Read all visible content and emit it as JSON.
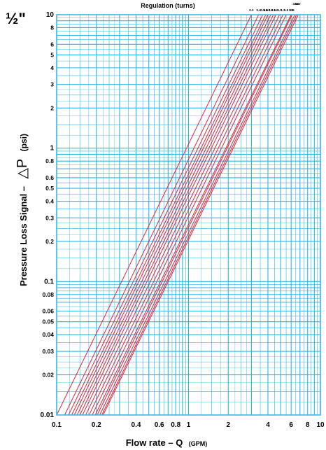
{
  "chart_data": {
    "type": "line",
    "corner_label": "½\"",
    "title": "Regulation (turns)",
    "xlabel": "Flow rate  –  Q",
    "xlabel_unit": "(GPM)",
    "ylabel": "Pressure Loss Signal  –",
    "ylabel_symbol": "△P",
    "ylabel_unit": "(psi)",
    "x_scale": "log",
    "y_scale": "log",
    "xlim": [
      0.1,
      10
    ],
    "ylim": [
      0.01,
      10
    ],
    "grid": true,
    "x_ticks": [
      {
        "value": 0.1,
        "label": "0.1"
      },
      {
        "value": 0.2,
        "label": "0.2"
      },
      {
        "value": 0.4,
        "label": "0.4"
      },
      {
        "value": 0.6,
        "label": "0.6"
      },
      {
        "value": 0.8,
        "label": "0.8"
      },
      {
        "value": 1,
        "label": "1"
      },
      {
        "value": 2,
        "label": "2"
      },
      {
        "value": 4,
        "label": "4"
      },
      {
        "value": 6,
        "label": "6"
      },
      {
        "value": 8,
        "label": "8"
      },
      {
        "value": 10,
        "label": "10"
      }
    ],
    "y_ticks": [
      {
        "value": 0.01,
        "label": "0.01"
      },
      {
        "value": 0.02,
        "label": "0.02"
      },
      {
        "value": 0.03,
        "label": "0.03"
      },
      {
        "value": 0.04,
        "label": "0.04"
      },
      {
        "value": 0.05,
        "label": "0.05"
      },
      {
        "value": 0.06,
        "label": "0.06"
      },
      {
        "value": 0.08,
        "label": "0.08"
      },
      {
        "value": 0.1,
        "label": "0.1"
      },
      {
        "value": 0.2,
        "label": "0.2"
      },
      {
        "value": 0.3,
        "label": "0.3"
      },
      {
        "value": 0.4,
        "label": "0.4"
      },
      {
        "value": 0.5,
        "label": "0.5"
      },
      {
        "value": 0.6,
        "label": "0.6"
      },
      {
        "value": 0.8,
        "label": "0.8"
      },
      {
        "value": 1,
        "label": "1"
      },
      {
        "value": 2,
        "label": "2"
      },
      {
        "value": 3,
        "label": "3"
      },
      {
        "value": 4,
        "label": "4"
      },
      {
        "value": 5,
        "label": "5"
      },
      {
        "value": 6,
        "label": "6"
      },
      {
        "value": 8,
        "label": "8"
      },
      {
        "value": 10,
        "label": "10"
      }
    ],
    "series_labels": [
      "0.3",
      "0.4",
      "0.5",
      "0.6",
      "0.7",
      "0.8",
      "0.9",
      "1.0",
      "1.1",
      "1.2",
      "1.5",
      "2.0",
      "2.5",
      "3.0",
      "3.5",
      "4.0"
    ],
    "series_x_at_10psi": [
      3.0,
      3.4,
      3.65,
      3.85,
      4.0,
      4.2,
      4.4,
      4.6,
      4.9,
      5.2,
      5.5,
      6.0,
      6.1,
      6.4,
      6.6,
      6.8
    ],
    "series_x_at_0_01psi": [
      0.1,
      0.115,
      0.123,
      0.13,
      0.136,
      0.143,
      0.15,
      0.157,
      0.166,
      0.176,
      0.186,
      0.196,
      0.203,
      0.212,
      0.22,
      0.225
    ],
    "colors": {
      "grid": "#29b7e6",
      "curve": "#e0283c",
      "text": "#000000"
    }
  }
}
